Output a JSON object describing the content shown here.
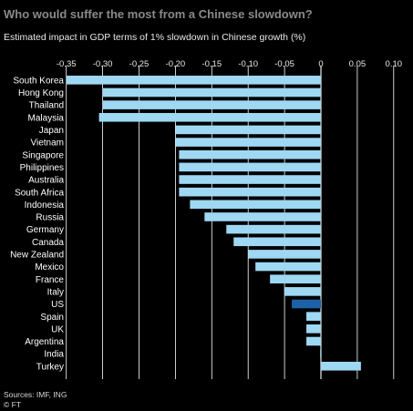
{
  "title": "Who would suffer the most from a Chinese slowdown?",
  "chart_data": {
    "type": "bar",
    "orientation": "horizontal",
    "title": "Who would suffer the most from a Chinese slowdown?",
    "subtitle": "Estimated impact in GDP terms of 1% slowdown in Chinese growth (%)",
    "categories": [
      "South Korea",
      "Hong Kong",
      "Thailand",
      "Malaysia",
      "Japan",
      "Vietnam",
      "Singapore",
      "Philippines",
      "Australia",
      "South Africa",
      "Indonesia",
      "Russia",
      "Germany",
      "Canada",
      "New Zealand",
      "Mexico",
      "France",
      "Italy",
      "US",
      "Spain",
      "UK",
      "Argentina",
      "India",
      "Turkey"
    ],
    "values": [
      -0.35,
      -0.3,
      -0.3,
      -0.305,
      -0.2,
      -0.2,
      -0.195,
      -0.195,
      -0.195,
      -0.195,
      -0.18,
      -0.16,
      -0.13,
      -0.12,
      -0.1,
      -0.09,
      -0.07,
      -0.05,
      -0.04,
      -0.02,
      -0.02,
      -0.02,
      -0.001,
      0.055
    ],
    "highlight": "US",
    "xlim": [
      -0.36,
      0.1
    ],
    "xticks": [
      -0.35,
      -0.3,
      -0.25,
      -0.2,
      -0.15,
      -0.1,
      -0.05,
      0,
      0.05,
      0.1
    ],
    "xtick_labels": [
      "-0.35",
      "-0.30",
      "-0.25",
      "-0.20",
      "-0.15",
      "-0.10",
      "-0.05",
      "0",
      "0.05",
      "0.10"
    ],
    "grid": true,
    "colors": {
      "bar": "#9fd8f2",
      "highlight": "#1b62a8",
      "grid": "#ffffff"
    }
  },
  "footer": {
    "sources": "Sources: IMF, ING",
    "credit": "© FT"
  }
}
